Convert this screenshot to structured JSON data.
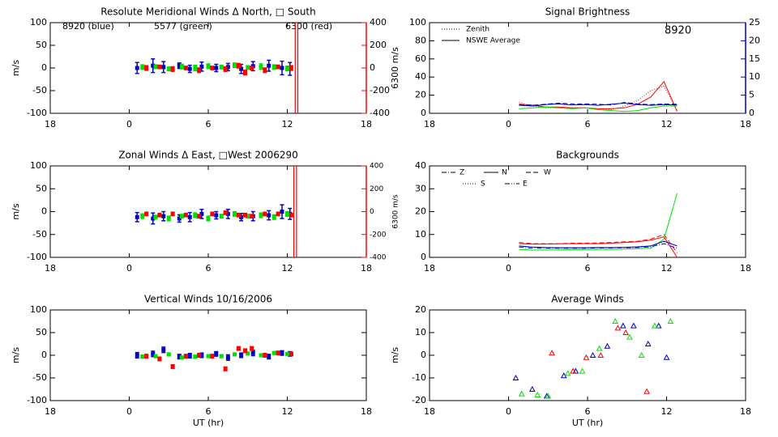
{
  "chart_data": [
    {
      "type": "errorbar",
      "title": "Resolute Meridional Winds Δ North, □ South",
      "ylabel": "m/s",
      "xlim": [
        -6,
        18
      ],
      "xticks": [
        {
          "value": -6,
          "label": "18"
        },
        0,
        6,
        12,
        18
      ],
      "ylim": [
        -100,
        100
      ],
      "yticks": [
        100,
        50,
        0,
        -50,
        -100
      ],
      "y2lim": [
        -400,
        400
      ],
      "y2ticks": [
        400,
        200,
        0,
        -200,
        -400
      ],
      "y2label": "6300 m/s",
      "y2color": "#ff0000",
      "annotations": [
        {
          "text": "8920 (blue)",
          "color": "#0000c0"
        },
        {
          "text": "5577 (green)",
          "color": "#00e000"
        },
        {
          "text": "6300 (red)",
          "color": "#ff0000"
        }
      ],
      "vlines": [
        12.6,
        12.8
      ],
      "vline_color": "#ff0000",
      "series": [
        {
          "color": "#0000c0",
          "x": [
            0.6,
            1.8,
            2.6,
            3.8,
            4.6,
            5.5,
            6.6,
            7.5,
            8.5,
            9.4,
            10.6,
            11.6,
            12.2
          ],
          "values": [
            0,
            5,
            2,
            5,
            -2,
            3,
            0,
            2,
            -2,
            4,
            5,
            0,
            -2
          ],
          "errors": [
            12,
            15,
            12,
            6,
            8,
            10,
            8,
            8,
            10,
            10,
            12,
            15,
            14
          ]
        },
        {
          "color": "#00e000",
          "x": [
            1.0,
            2.0,
            3.0,
            4.0,
            5.0,
            6.0,
            7.0,
            8.0,
            9.0,
            10.0,
            11.0,
            12.0
          ],
          "values": [
            2,
            3,
            -2,
            3,
            0,
            4,
            2,
            6,
            1,
            3,
            2,
            -1
          ],
          "errors": [
            5,
            4,
            4,
            5,
            6,
            5,
            4,
            5,
            4,
            6,
            5,
            5
          ]
        },
        {
          "color": "#ff0000",
          "axis": "y2",
          "x": [
            1.3,
            2.3,
            3.3,
            4.3,
            5.3,
            6.3,
            7.3,
            8.3,
            8.8,
            9.3,
            10.3,
            11.3,
            12.3
          ],
          "values": [
            0,
            10,
            -10,
            0,
            -20,
            0,
            -10,
            20,
            -40,
            0,
            -20,
            10,
            0
          ],
          "errors": [
            20,
            15,
            20,
            15,
            20,
            15,
            20,
            20,
            20,
            15,
            20,
            15,
            20
          ]
        }
      ]
    },
    {
      "type": "line",
      "title": "Signal Brightness",
      "xlim": [
        -6,
        18
      ],
      "xticks": [
        {
          "value": -6,
          "label": "18"
        },
        0,
        6,
        12,
        18
      ],
      "ylim": [
        0,
        100
      ],
      "yticks": [
        0,
        20,
        40,
        60,
        80,
        100
      ],
      "y2lim": [
        0,
        25
      ],
      "y2ticks": [
        0,
        5,
        10,
        15,
        20,
        25
      ],
      "y2color": "#0000c0",
      "annotations": [
        {
          "text": "8920",
          "color": "#0000c0"
        }
      ],
      "legend": [
        {
          "label": "Zenith",
          "dash": "dotted"
        },
        {
          "label": "NSWE Average",
          "dash": "solid"
        }
      ],
      "series": [
        {
          "color": "#ff0000",
          "dash": "solid",
          "x": [
            0.8,
            1.8,
            2.8,
            3.8,
            4.8,
            5.8,
            6.8,
            7.8,
            8.8,
            9.8,
            10.8,
            11.8,
            12.8
          ],
          "values": [
            10,
            9,
            7,
            7,
            6,
            6,
            5,
            5,
            6,
            10,
            18,
            35,
            2
          ]
        },
        {
          "color": "#ff0000",
          "dash": "dotted",
          "x": [
            0.8,
            1.8,
            2.8,
            3.8,
            4.8,
            5.8,
            6.8,
            7.8,
            8.8,
            9.8,
            10.8,
            11.8,
            12.8
          ],
          "values": [
            12,
            8,
            6,
            6,
            6,
            6,
            5,
            4,
            8,
            14,
            25,
            30,
            3
          ]
        },
        {
          "color": "#00e000",
          "dash": "solid",
          "x": [
            0.8,
            1.8,
            2.8,
            3.8,
            4.8,
            5.8,
            6.8,
            7.8,
            8.8,
            9.8,
            10.8,
            11.8,
            12.8
          ],
          "values": [
            5,
            6,
            7,
            6,
            5,
            6,
            4,
            3,
            2,
            3,
            6,
            8,
            8
          ]
        },
        {
          "color": "#0000c0",
          "dash": "solid",
          "axis": "y2",
          "x": [
            0.8,
            1.8,
            2.8,
            3.8,
            4.8,
            5.8,
            6.8,
            7.8,
            8.8,
            9.8,
            10.8,
            11.8,
            12.8
          ],
          "values": [
            2.2,
            2.0,
            2.4,
            2.6,
            2.3,
            2.4,
            2.2,
            2.5,
            2.8,
            2.4,
            2.2,
            2.4,
            2.3
          ]
        },
        {
          "color": "#0000c0",
          "dash": "dashed",
          "axis": "y2",
          "x": [
            0.8,
            1.8,
            2.8,
            3.8,
            4.8,
            5.8,
            6.8,
            7.8,
            8.8,
            9.8,
            10.8,
            11.8,
            12.8
          ],
          "values": [
            2.4,
            2.2,
            2.5,
            2.8,
            2.6,
            2.6,
            2.5,
            2.3,
            3.0,
            2.6,
            2.4,
            2.6,
            2.5
          ]
        }
      ]
    },
    {
      "type": "errorbar",
      "title": "Zonal Winds Δ East, □West 2006290",
      "ylabel": "m/s",
      "xlim": [
        -6,
        18
      ],
      "xticks": [
        {
          "value": -6,
          "label": "18"
        },
        0,
        6,
        12,
        18
      ],
      "ylim": [
        -100,
        100
      ],
      "yticks": [
        100,
        50,
        0,
        -50,
        -100
      ],
      "y2lim": [
        -400,
        400
      ],
      "y2ticks": [
        400,
        200,
        0,
        -200,
        -400
      ],
      "y2label": "6300 m/s",
      "y2color": "#ff0000",
      "y2small": true,
      "vlines": [
        12.5,
        12.7
      ],
      "vline_color": "#ff0000",
      "series": [
        {
          "color": "#0000c0",
          "x": [
            0.6,
            1.8,
            2.6,
            3.8,
            4.6,
            5.5,
            6.6,
            7.5,
            8.5,
            9.4,
            10.6,
            11.6,
            12.2
          ],
          "values": [
            -12,
            -15,
            -10,
            -15,
            -12,
            -5,
            -8,
            -5,
            -12,
            -10,
            -8,
            0,
            -5
          ],
          "errors": [
            10,
            12,
            10,
            8,
            10,
            10,
            8,
            10,
            8,
            10,
            10,
            15,
            12
          ]
        },
        {
          "color": "#00e000",
          "x": [
            1.0,
            2.0,
            3.0,
            4.0,
            5.0,
            6.0,
            7.0,
            8.0,
            9.0,
            10.0,
            11.0,
            12.0
          ],
          "values": [
            -10,
            -12,
            -15,
            -10,
            -8,
            -15,
            -10,
            -5,
            -10,
            -8,
            -12,
            -5
          ],
          "errors": [
            5,
            4,
            5,
            4,
            5,
            5,
            4,
            5,
            4,
            5,
            5,
            5
          ]
        },
        {
          "color": "#ff0000",
          "axis": "y2",
          "x": [
            1.3,
            2.3,
            3.3,
            4.3,
            5.3,
            6.3,
            7.3,
            8.3,
            8.8,
            9.3,
            10.3,
            11.3,
            12.3
          ],
          "values": [
            -20,
            -30,
            -20,
            -30,
            -40,
            -20,
            -10,
            -30,
            -30,
            -40,
            -20,
            -20,
            -30
          ],
          "errors": [
            15,
            15,
            15,
            15,
            15,
            15,
            15,
            15,
            15,
            15,
            15,
            15,
            15
          ]
        }
      ]
    },
    {
      "type": "line",
      "title": "Backgrounds",
      "xlim": [
        -6,
        18
      ],
      "xticks": [
        {
          "value": -6,
          "label": "18"
        },
        0,
        6,
        12,
        18
      ],
      "ylim": [
        0,
        40
      ],
      "yticks": [
        0,
        10,
        20,
        30,
        40
      ],
      "legend": [
        {
          "label": "Z",
          "dash": "dash-dot"
        },
        {
          "label": "N",
          "dash": "solid"
        },
        {
          "label": "W",
          "dash": "dashed"
        },
        {
          "label": "S",
          "dash": "dotted"
        },
        {
          "label": "E",
          "dash": "dash-dot-dot"
        }
      ],
      "series": [
        {
          "color": "#ff0000",
          "dash": "solid",
          "x": [
            0.8,
            1.8,
            2.8,
            3.8,
            4.8,
            5.8,
            6.8,
            7.8,
            8.8,
            9.8,
            10.8,
            11.8,
            12.8
          ],
          "values": [
            6,
            5.8,
            5.8,
            5.9,
            6,
            6,
            6,
            6.2,
            6.5,
            6.8,
            7.5,
            9,
            0
          ]
        },
        {
          "color": "#ff0000",
          "dash": "dashed",
          "x": [
            0.8,
            1.8,
            2.8,
            3.8,
            4.8,
            5.8,
            6.8,
            7.8,
            8.8,
            9.8,
            10.8,
            11.8,
            12.8
          ],
          "values": [
            6.5,
            6,
            6,
            6,
            6.2,
            6.2,
            6.3,
            6.5,
            6.8,
            7,
            8,
            10,
            2
          ]
        },
        {
          "color": "#00e000",
          "dash": "solid",
          "x": [
            0.8,
            1.8,
            2.8,
            3.8,
            4.8,
            5.8,
            6.8,
            7.8,
            8.8,
            9.8,
            10.8,
            11.8,
            12.8
          ],
          "values": [
            3.5,
            3.2,
            3.2,
            3.3,
            3.4,
            3.4,
            3.5,
            3.5,
            3.6,
            3.8,
            4,
            8,
            28
          ]
        },
        {
          "color": "#0000c0",
          "dash": "solid",
          "x": [
            0.8,
            1.8,
            2.8,
            3.8,
            4.8,
            5.8,
            6.8,
            7.8,
            8.8,
            9.8,
            10.8,
            11.8,
            12.8
          ],
          "values": [
            5,
            4.5,
            4.3,
            4.2,
            4.2,
            4.2,
            4.3,
            4.3,
            4.4,
            4.6,
            5,
            7,
            5
          ]
        },
        {
          "color": "#0000c0",
          "dash": "dash-dot",
          "x": [
            0.8,
            1.8,
            2.8,
            3.8,
            4.8,
            5.8,
            6.8,
            7.8,
            8.8,
            9.8,
            10.8,
            11.8,
            12.8
          ],
          "values": [
            4.5,
            4,
            4,
            4,
            4,
            4,
            4.1,
            4.1,
            4.2,
            4.3,
            4.6,
            6,
            4
          ]
        }
      ]
    },
    {
      "type": "errorbar",
      "title": "Vertical Winds 10/16/2006",
      "ylabel": "m/s",
      "xlabel": "UT (hr)",
      "xlim": [
        -6,
        18
      ],
      "xticks": [
        {
          "value": -6,
          "label": "18"
        },
        0,
        6,
        12,
        18
      ],
      "ylim": [
        -100,
        100
      ],
      "yticks": [
        100,
        50,
        0,
        -50,
        -100
      ],
      "series": [
        {
          "color": "#0000c0",
          "x": [
            0.6,
            1.8,
            2.6,
            3.8,
            4.6,
            5.5,
            6.6,
            7.5,
            8.5,
            9.4,
            10.6,
            11.6,
            12.2
          ],
          "values": [
            0,
            3,
            12,
            -3,
            -1,
            0,
            3,
            -5,
            0,
            5,
            -3,
            5,
            3
          ],
          "errors": [
            6,
            6,
            6,
            5,
            5,
            5,
            5,
            6,
            5,
            6,
            5,
            5,
            5
          ]
        },
        {
          "color": "#00e000",
          "x": [
            1.0,
            2.0,
            3.0,
            4.0,
            5.0,
            6.0,
            7.0,
            8.0,
            9.0,
            10.0,
            11.0,
            12.0
          ],
          "values": [
            -3,
            -2,
            2,
            -5,
            -3,
            -2,
            -2,
            2,
            4,
            0,
            5,
            3
          ],
          "errors": [
            3,
            3,
            3,
            3,
            3,
            3,
            3,
            3,
            3,
            3,
            3,
            3
          ]
        },
        {
          "color": "#ff0000",
          "x": [
            1.3,
            2.3,
            3.3,
            4.3,
            5.3,
            6.3,
            7.3,
            8.3,
            8.8,
            9.3,
            10.3,
            11.3,
            12.3
          ],
          "values": [
            -2,
            -8,
            -25,
            -2,
            0,
            -2,
            -30,
            15,
            10,
            15,
            0,
            5,
            3
          ],
          "errors": [
            4,
            4,
            4,
            4,
            4,
            4,
            4,
            4,
            4,
            4,
            4,
            4,
            4
          ]
        }
      ]
    },
    {
      "type": "scatter",
      "title": "Average Winds",
      "ylabel": "m/s",
      "xlabel": "UT (hr)",
      "xlim": [
        -6,
        18
      ],
      "xticks": [
        {
          "value": -6,
          "label": "18"
        },
        0,
        6,
        12,
        18
      ],
      "ylim": [
        -20,
        20
      ],
      "yticks": [
        20,
        10,
        0,
        -10,
        -20
      ],
      "series": [
        {
          "color": "#0000c0",
          "x": [
            0.55,
            1.8,
            2.9,
            4.2,
            5.1,
            6.4,
            7.5,
            8.7,
            9.5,
            10.6,
            11.4,
            12.0
          ],
          "values": [
            -10,
            -15,
            -18,
            -9,
            -7,
            0,
            4,
            13,
            13,
            5,
            13,
            -1
          ]
        },
        {
          "color": "#00e000",
          "x": [
            1.0,
            2.2,
            3.0,
            4.5,
            5.6,
            6.9,
            8.1,
            9.2,
            10.1,
            11.1,
            12.3
          ],
          "values": [
            -17,
            -17.5,
            -18,
            -8,
            -7,
            3,
            15,
            8,
            0,
            13,
            15
          ]
        },
        {
          "color": "#ff0000",
          "x": [
            3.3,
            4.9,
            5.9,
            7.0,
            8.3,
            8.9,
            10.5
          ],
          "values": [
            1,
            -7,
            -1,
            0,
            12,
            10,
            -16
          ]
        }
      ]
    }
  ]
}
